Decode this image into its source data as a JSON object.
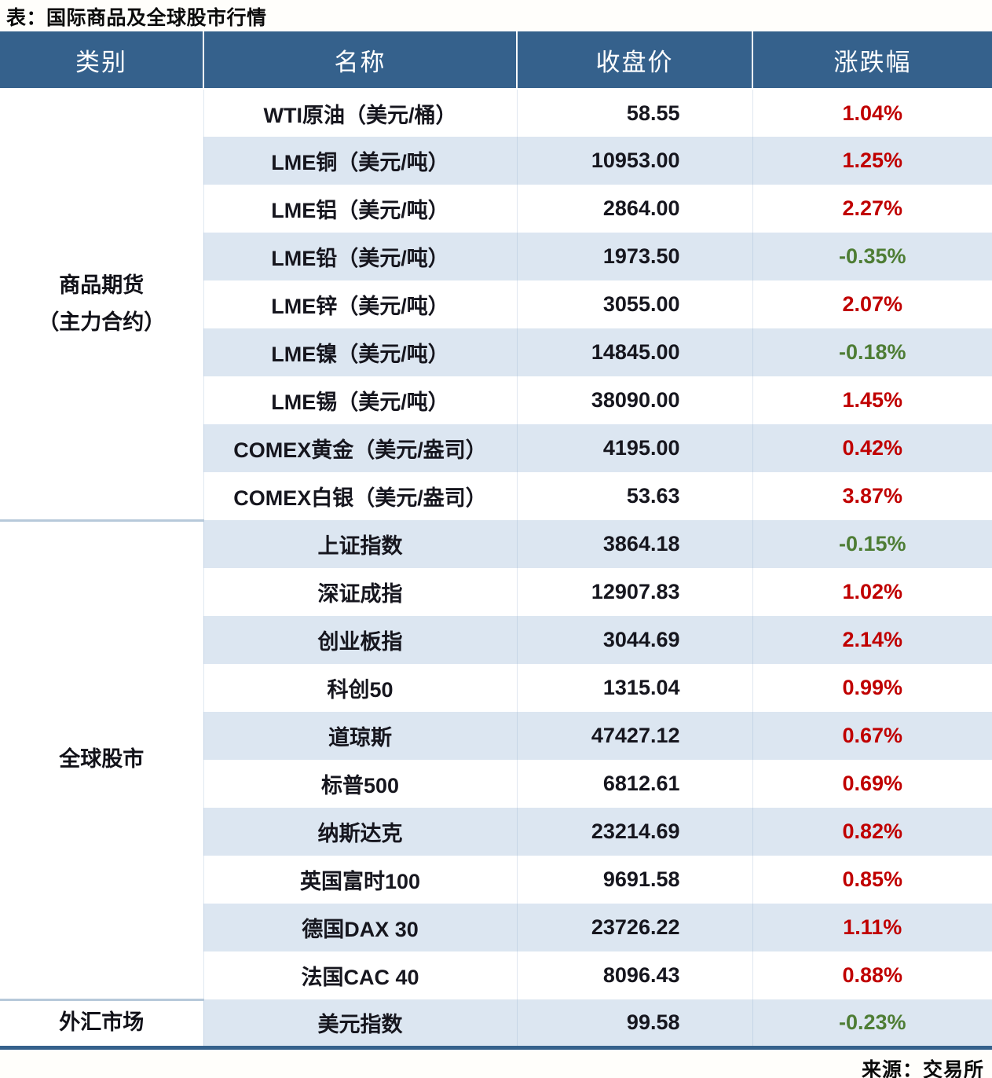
{
  "title": "表：国际商品及全球股市行情",
  "source": "来源：交易所",
  "colors": {
    "header_bg": "#35618C",
    "header_text": "#FFFFFF",
    "row_bg": "#FFFFFF",
    "row_alt_bg": "#DCE6F1",
    "up_red": "#C00000",
    "down_green": "#4E7D35",
    "bottom_border": "#35618C",
    "section_divider": "#B7C9DA"
  },
  "table": {
    "headers": [
      "类别",
      "名称",
      "收盘价",
      "涨跌幅"
    ],
    "groups": [
      {
        "category_lines": [
          "商品期货",
          "（主力合约）"
        ],
        "rows": [
          {
            "name": "WTI原油（美元/桶）",
            "close": "58.55",
            "change": "1.04%",
            "direction": "up"
          },
          {
            "name": "LME铜（美元/吨）",
            "close": "10953.00",
            "change": "1.25%",
            "direction": "up"
          },
          {
            "name": "LME铝（美元/吨）",
            "close": "2864.00",
            "change": "2.27%",
            "direction": "up"
          },
          {
            "name": "LME铅（美元/吨）",
            "close": "1973.50",
            "change": "-0.35%",
            "direction": "down"
          },
          {
            "name": "LME锌（美元/吨）",
            "close": "3055.00",
            "change": "2.07%",
            "direction": "up"
          },
          {
            "name": "LME镍（美元/吨）",
            "close": "14845.00",
            "change": "-0.18%",
            "direction": "down"
          },
          {
            "name": "LME锡（美元/吨）",
            "close": "38090.00",
            "change": "1.45%",
            "direction": "up"
          },
          {
            "name": "COMEX黄金（美元/盎司）",
            "close": "4195.00",
            "change": "0.42%",
            "direction": "up"
          },
          {
            "name": "COMEX白银（美元/盎司）",
            "close": "53.63",
            "change": "3.87%",
            "direction": "up"
          }
        ]
      },
      {
        "category_lines": [
          "全球股市"
        ],
        "rows": [
          {
            "name": "上证指数",
            "close": "3864.18",
            "change": "-0.15%",
            "direction": "down"
          },
          {
            "name": "深证成指",
            "close": "12907.83",
            "change": "1.02%",
            "direction": "up"
          },
          {
            "name": "创业板指",
            "close": "3044.69",
            "change": "2.14%",
            "direction": "up"
          },
          {
            "name": "科创50",
            "close": "1315.04",
            "change": "0.99%",
            "direction": "up"
          },
          {
            "name": "道琼斯",
            "close": "47427.12",
            "change": "0.67%",
            "direction": "up"
          },
          {
            "name": "标普500",
            "close": "6812.61",
            "change": "0.69%",
            "direction": "up"
          },
          {
            "name": "纳斯达克",
            "close": "23214.69",
            "change": "0.82%",
            "direction": "up"
          },
          {
            "name": "英国富时100",
            "close": "9691.58",
            "change": "0.85%",
            "direction": "up"
          },
          {
            "name": "德国DAX 30",
            "close": "23726.22",
            "change": "1.11%",
            "direction": "up"
          },
          {
            "name": "法国CAC 40",
            "close": "8096.43",
            "change": "0.88%",
            "direction": "up"
          }
        ]
      },
      {
        "category_lines": [
          "外汇市场"
        ],
        "rows": [
          {
            "name": "美元指数",
            "close": "99.58",
            "change": "-0.23%",
            "direction": "down"
          }
        ]
      }
    ]
  }
}
